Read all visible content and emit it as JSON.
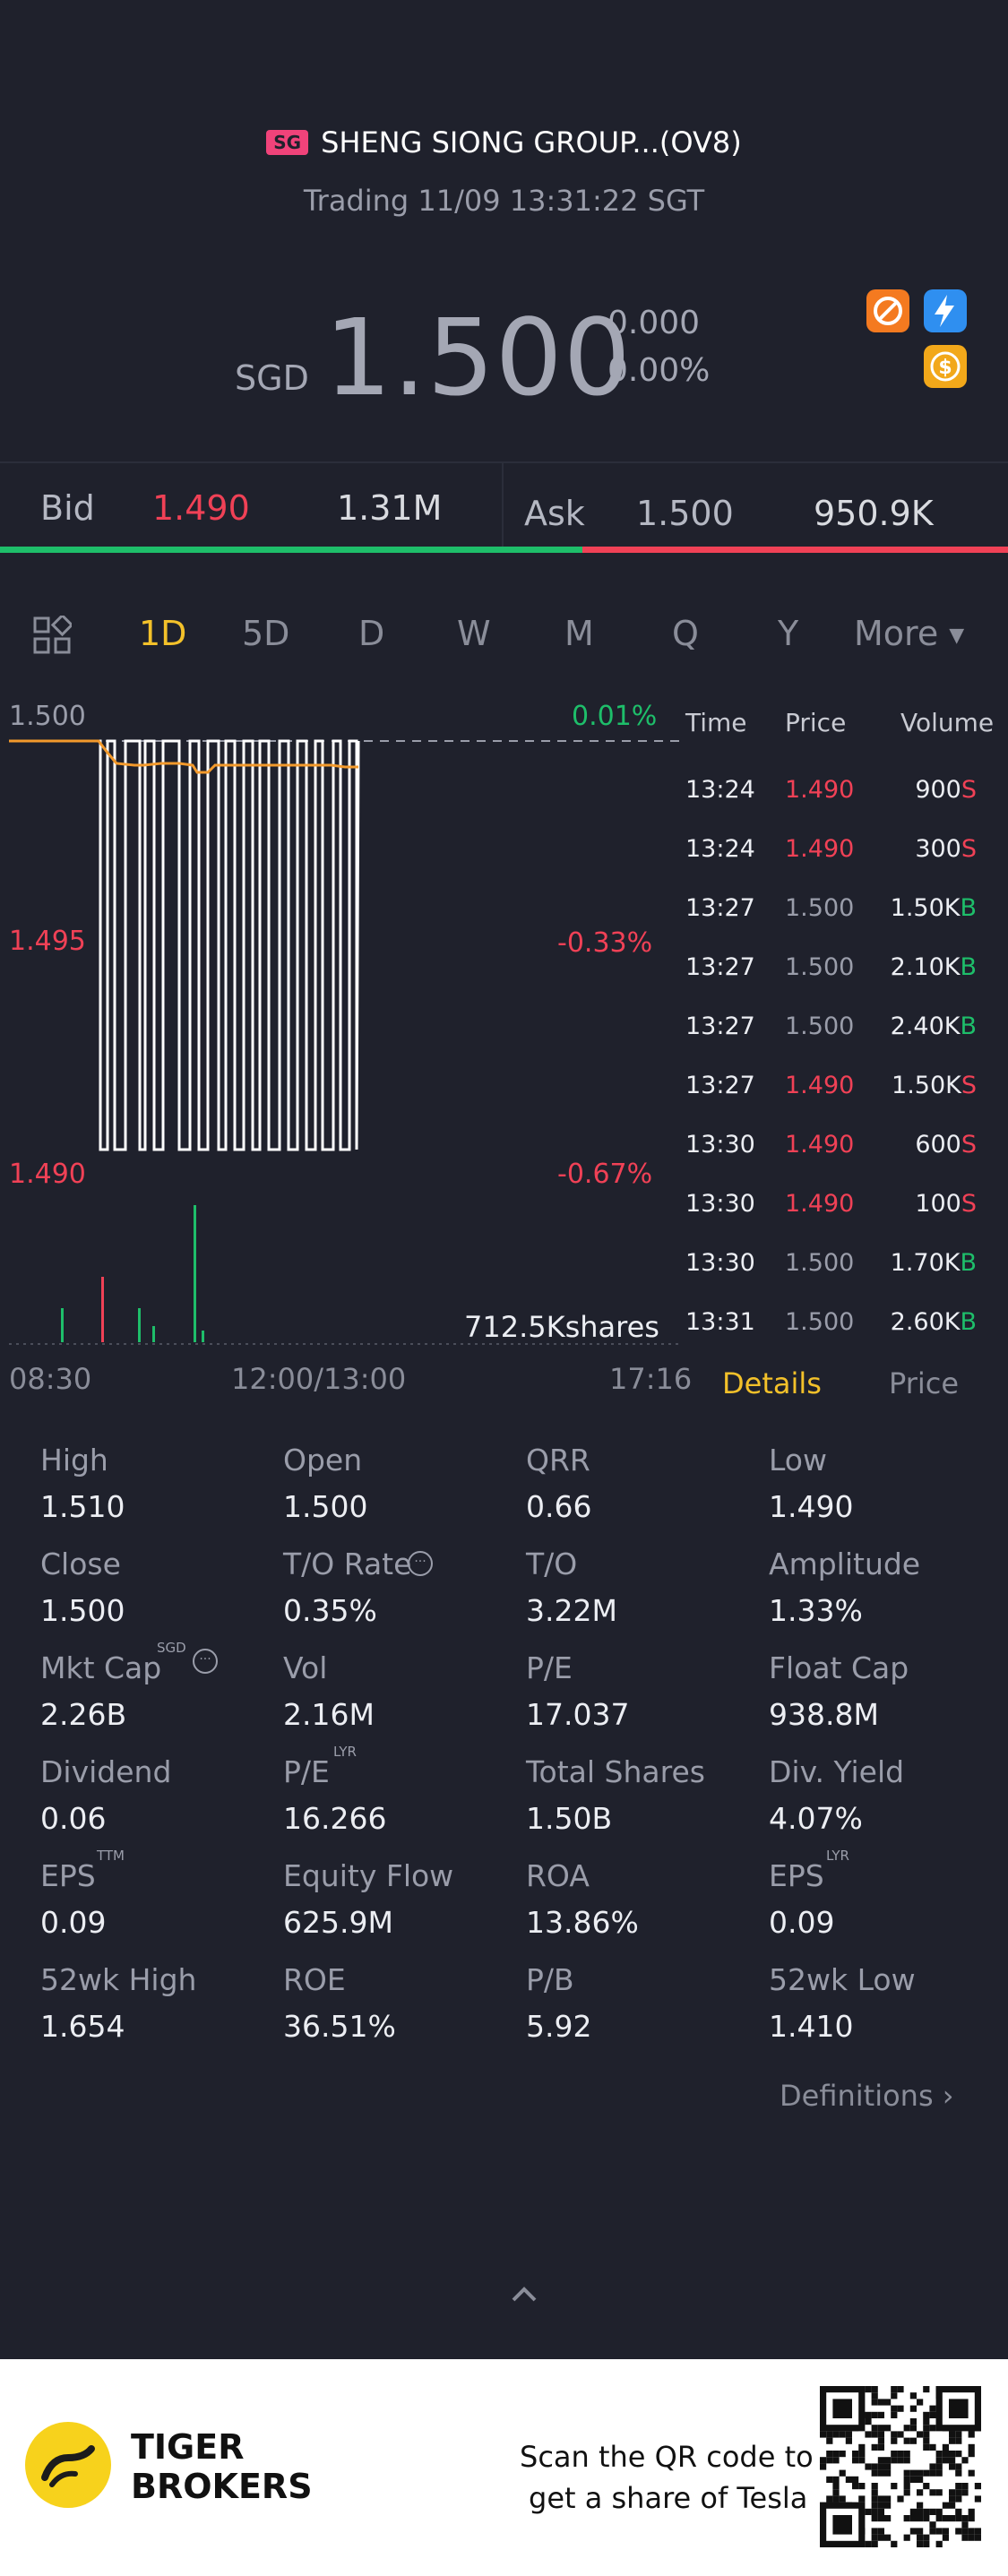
{
  "header": {
    "market_badge": "SG",
    "stock_name": "SHENG SIONG GROUP...(OV8)",
    "status": "Trading 11/09 13:31:22 SGT",
    "currency": "SGD",
    "price": "1.500",
    "change": "0.000",
    "change_pct": "0.00%"
  },
  "quote": {
    "bid_label": "Bid",
    "bid_price": "1.490",
    "bid_vol": "1.31M",
    "ask_label": "Ask",
    "ask_price": "1.500",
    "ask_vol": "950.9K"
  },
  "periods": [
    "1D",
    "5D",
    "D",
    "W",
    "M",
    "Q",
    "Y",
    "More"
  ],
  "chart_labels": {
    "y_top": "1.500",
    "y_mid": "1.495",
    "y_bot": "1.490",
    "pct_top": "0.01%",
    "pct_mid": "-0.33%",
    "pct_bot": "-0.67%",
    "volume": "712.5Kshares",
    "t_start": "08:30",
    "t_mid": "12:00/13:00",
    "t_end": "17:16"
  },
  "chart_data": {
    "type": "line",
    "x_ticks": [
      "08:30",
      "12:00/13:00",
      "17:16"
    ],
    "y_ticks": [
      "1.500",
      "1.495",
      "1.490"
    ],
    "ylim": [
      1.49,
      1.5
    ],
    "pct_ticks": [
      "0.01%",
      "-0.33%",
      "-0.67%"
    ],
    "volume_total": "712.5Kshares"
  },
  "trades": {
    "headers": {
      "time": "Time",
      "price": "Price",
      "volume": "Volume"
    },
    "rows": [
      {
        "time": "13:24",
        "price": "1.490",
        "vol": "900",
        "side": "S"
      },
      {
        "time": "13:24",
        "price": "1.490",
        "vol": "300",
        "side": "S"
      },
      {
        "time": "13:27",
        "price": "1.500",
        "vol": "1.50K",
        "side": "B"
      },
      {
        "time": "13:27",
        "price": "1.500",
        "vol": "2.10K",
        "side": "B"
      },
      {
        "time": "13:27",
        "price": "1.500",
        "vol": "2.40K",
        "side": "B"
      },
      {
        "time": "13:27",
        "price": "1.490",
        "vol": "1.50K",
        "side": "S"
      },
      {
        "time": "13:30",
        "price": "1.490",
        "vol": "600",
        "side": "S"
      },
      {
        "time": "13:30",
        "price": "1.490",
        "vol": "100",
        "side": "S"
      },
      {
        "time": "13:30",
        "price": "1.500",
        "vol": "1.70K",
        "side": "B"
      },
      {
        "time": "13:31",
        "price": "1.500",
        "vol": "2.60K",
        "side": "B"
      }
    ],
    "tab_details": "Details",
    "tab_price": "Price"
  },
  "stats": {
    "high_l": "High",
    "high_v": "1.510",
    "open_l": "Open",
    "open_v": "1.500",
    "qrr_l": "QRR",
    "qrr_v": "0.66",
    "low_l": "Low",
    "low_v": "1.490",
    "close_l": "Close",
    "close_v": "1.500",
    "tor_l": "T/O Rate",
    "tor_v": "0.35%",
    "to_l": "T/O",
    "to_v": "3.22M",
    "amp_l": "Amplitude",
    "amp_v": "1.33%",
    "mcap_l": "Mkt Cap",
    "mcap_sup": "SGD",
    "mcap_v": "2.26B",
    "vol_l": "Vol",
    "vol_v": "2.16M",
    "pe_l": "P/E",
    "pe_v": "17.037",
    "fcap_l": "Float Cap",
    "fcap_v": "938.8M",
    "div_l": "Dividend",
    "div_v": "0.06",
    "pelyr_l": "P/E",
    "pelyr_sup": "LYR",
    "pelyr_v": "16.266",
    "tsh_l": "Total Shares",
    "tsh_v": "1.50B",
    "dy_l": "Div. Yield",
    "dy_v": "4.07%",
    "eps_l": "EPS",
    "eps_sup": "TTM",
    "eps_v": "0.09",
    "eqf_l": "Equity Flow",
    "eqf_v": "625.9M",
    "roa_l": "ROA",
    "roa_v": "13.86%",
    "epslyr_l": "EPS",
    "epslyr_sup": "LYR",
    "epslyr_v": "0.09",
    "h52_l": "52wk High",
    "h52_v": "1.654",
    "roe_l": "ROE",
    "roe_v": "36.51%",
    "pb_l": "P/B",
    "pb_v": "5.92",
    "l52_l": "52wk Low",
    "l52_v": "1.410"
  },
  "definitions": "Definitions",
  "footer": {
    "brand_line1": "TIGER",
    "brand_line2": "BROKERS",
    "promo_line1": "Scan the QR code to",
    "promo_line2": "get a share of Tesla"
  },
  "colors": {
    "up": "#1ebe6a",
    "down": "#f04156",
    "accent": "#f3c12a",
    "bg": "#1f212c"
  }
}
